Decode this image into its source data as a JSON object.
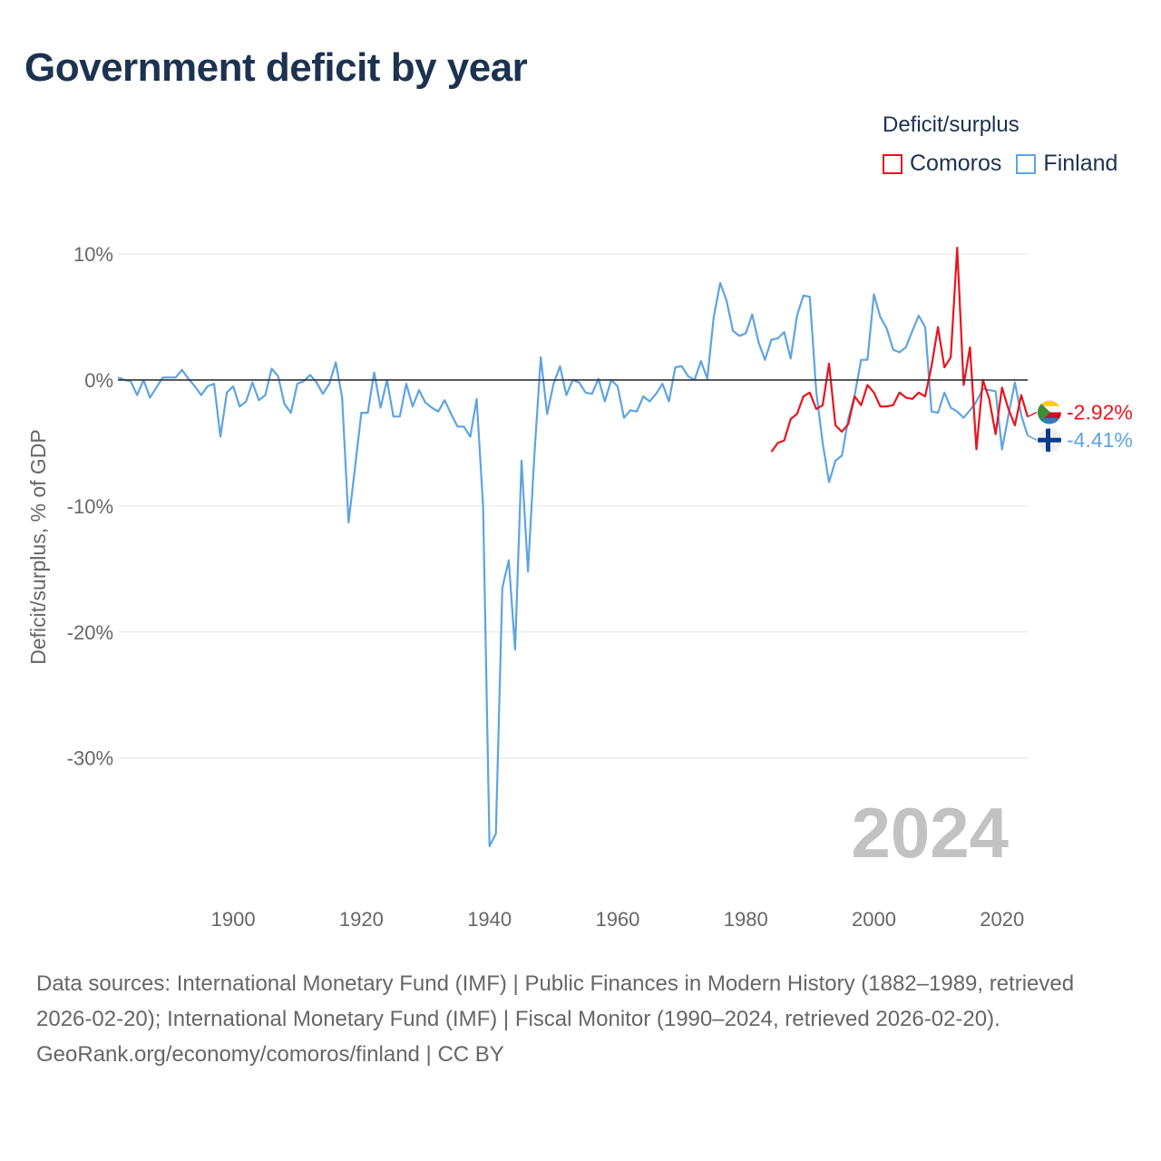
{
  "title": "Government deficit by year",
  "legend": {
    "title": "Deficit/surplus",
    "items": [
      {
        "label": "Comoros",
        "color": "#e8141c"
      },
      {
        "label": "Finland",
        "color": "#5ea3e3"
      }
    ]
  },
  "footer": {
    "sources": "Data sources: International Monetary Fund (IMF) | Public Finances in Modern History (1882–1989, retrieved 2026-02-20); International Monetary Fund (IMF) | Fiscal Monitor (1990–2024, retrieved 2026-02-20).",
    "credit": "GeoRank.org/economy/comoros/finland | CC BY"
  },
  "chart_data": {
    "type": "line",
    "title": "Government deficit by year",
    "xlabel": "",
    "ylabel": "Deficit/surplus, % of GDP",
    "xlim": [
      1882,
      2024
    ],
    "ylim": [
      -38,
      12
    ],
    "x_ticks": [
      1900,
      1920,
      1940,
      1960,
      1980,
      2000,
      2020
    ],
    "x_tick_labels": [
      "1900",
      "1920",
      "1940",
      "1960",
      "1980",
      "2000",
      "2020"
    ],
    "y_ticks": [
      10,
      0,
      -10,
      -20,
      -30
    ],
    "y_tick_labels": [
      "10%",
      "0%",
      "-10%",
      "-20%",
      "-30%"
    ],
    "year_label": "2024",
    "series": [
      {
        "name": "Comoros",
        "color": "#e8141c",
        "end_label": "-2.92%",
        "x": [
          1984,
          1985,
          1986,
          1987,
          1988,
          1989,
          1990,
          1991,
          1992,
          1993,
          1994,
          1995,
          1996,
          1997,
          1998,
          1999,
          2000,
          2001,
          2002,
          2003,
          2004,
          2005,
          2006,
          2007,
          2008,
          2009,
          2010,
          2011,
          2012,
          2013,
          2014,
          2015,
          2016,
          2017,
          2018,
          2019,
          2020,
          2021,
          2022,
          2023,
          2024
        ],
        "y": [
          -5.7,
          -5.0,
          -4.8,
          -3.1,
          -2.7,
          -1.3,
          -1.0,
          -2.3,
          -2.0,
          1.3,
          -3.6,
          -4.1,
          -3.5,
          -1.3,
          -2.0,
          -0.4,
          -1.0,
          -2.1,
          -2.1,
          -2.0,
          -1.0,
          -1.4,
          -1.5,
          -1.0,
          -1.3,
          1.1,
          4.2,
          1.0,
          1.8,
          10.5,
          -0.4,
          2.6,
          -5.5,
          0.0,
          -1.5,
          -4.3,
          -0.6,
          -2.3,
          -3.6,
          -1.2,
          -2.92
        ]
      },
      {
        "name": "Finland",
        "color": "#5ea3e3",
        "end_label": "-4.41%",
        "x": [
          1882,
          1883,
          1884,
          1885,
          1886,
          1887,
          1888,
          1889,
          1890,
          1891,
          1892,
          1893,
          1894,
          1895,
          1896,
          1897,
          1898,
          1899,
          1900,
          1901,
          1902,
          1903,
          1904,
          1905,
          1906,
          1907,
          1908,
          1909,
          1910,
          1911,
          1912,
          1913,
          1914,
          1915,
          1916,
          1917,
          1918,
          1919,
          1920,
          1921,
          1922,
          1923,
          1924,
          1925,
          1926,
          1927,
          1928,
          1929,
          1930,
          1931,
          1932,
          1933,
          1934,
          1935,
          1936,
          1937,
          1938,
          1939,
          1940,
          1941,
          1942,
          1943,
          1944,
          1945,
          1946,
          1947,
          1948,
          1949,
          1950,
          1951,
          1952,
          1953,
          1954,
          1955,
          1956,
          1957,
          1958,
          1959,
          1960,
          1961,
          1962,
          1963,
          1964,
          1965,
          1966,
          1967,
          1968,
          1969,
          1970,
          1971,
          1972,
          1973,
          1974,
          1975,
          1976,
          1977,
          1978,
          1979,
          1980,
          1981,
          1982,
          1983,
          1984,
          1985,
          1986,
          1987,
          1988,
          1989,
          1990,
          1991,
          1992,
          1993,
          1994,
          1995,
          1996,
          1997,
          1998,
          1999,
          2000,
          2001,
          2002,
          2003,
          2004,
          2005,
          2006,
          2007,
          2008,
          2009,
          2010,
          2011,
          2012,
          2013,
          2014,
          2015,
          2016,
          2017,
          2018,
          2019,
          2020,
          2021,
          2022,
          2023,
          2024
        ],
        "y": [
          0.2,
          0.0,
          -0.1,
          -1.2,
          0.0,
          -1.4,
          -0.6,
          0.2,
          0.2,
          0.2,
          0.8,
          0.1,
          -0.5,
          -1.2,
          -0.5,
          -0.3,
          -4.5,
          -1.0,
          -0.5,
          -2.1,
          -1.7,
          -0.2,
          -1.6,
          -1.2,
          0.9,
          0.3,
          -1.9,
          -2.6,
          -0.3,
          -0.1,
          0.4,
          -0.2,
          -1.1,
          -0.3,
          1.4,
          -1.4,
          -11.3,
          -7.0,
          -2.6,
          -2.6,
          0.6,
          -2.2,
          0.0,
          -2.9,
          -2.9,
          -0.3,
          -2.1,
          -0.8,
          -1.8,
          -2.2,
          -2.5,
          -1.6,
          -2.7,
          -3.7,
          -3.7,
          -4.5,
          -1.5,
          -10.0,
          -37.0,
          -36.0,
          -16.5,
          -14.3,
          -21.4,
          -6.4,
          -15.2,
          -6.0,
          1.8,
          -2.7,
          -0.3,
          1.1,
          -1.2,
          0.0,
          -0.2,
          -1.0,
          -1.1,
          0.1,
          -1.7,
          0.0,
          -0.5,
          -3.0,
          -2.4,
          -2.5,
          -1.3,
          -1.7,
          -1.1,
          -0.3,
          -1.7,
          1.0,
          1.1,
          0.3,
          0.0,
          1.5,
          0.1,
          5.0,
          7.7,
          6.3,
          3.9,
          3.5,
          3.7,
          5.2,
          3.0,
          1.6,
          3.2,
          3.3,
          3.8,
          1.7,
          5.1,
          6.7,
          6.6,
          -0.9,
          -5.0,
          -8.1,
          -6.4,
          -6.0,
          -3.1,
          -1.2,
          1.6,
          1.6,
          6.8,
          5.0,
          4.1,
          2.4,
          2.2,
          2.6,
          3.9,
          5.1,
          4.2,
          -2.5,
          -2.6,
          -1.0,
          -2.2,
          -2.5,
          -3.0,
          -2.4,
          -1.7,
          -0.7,
          -0.8,
          -0.9,
          -5.5,
          -2.8,
          -0.2,
          -2.8,
          -4.41
        ]
      }
    ]
  }
}
